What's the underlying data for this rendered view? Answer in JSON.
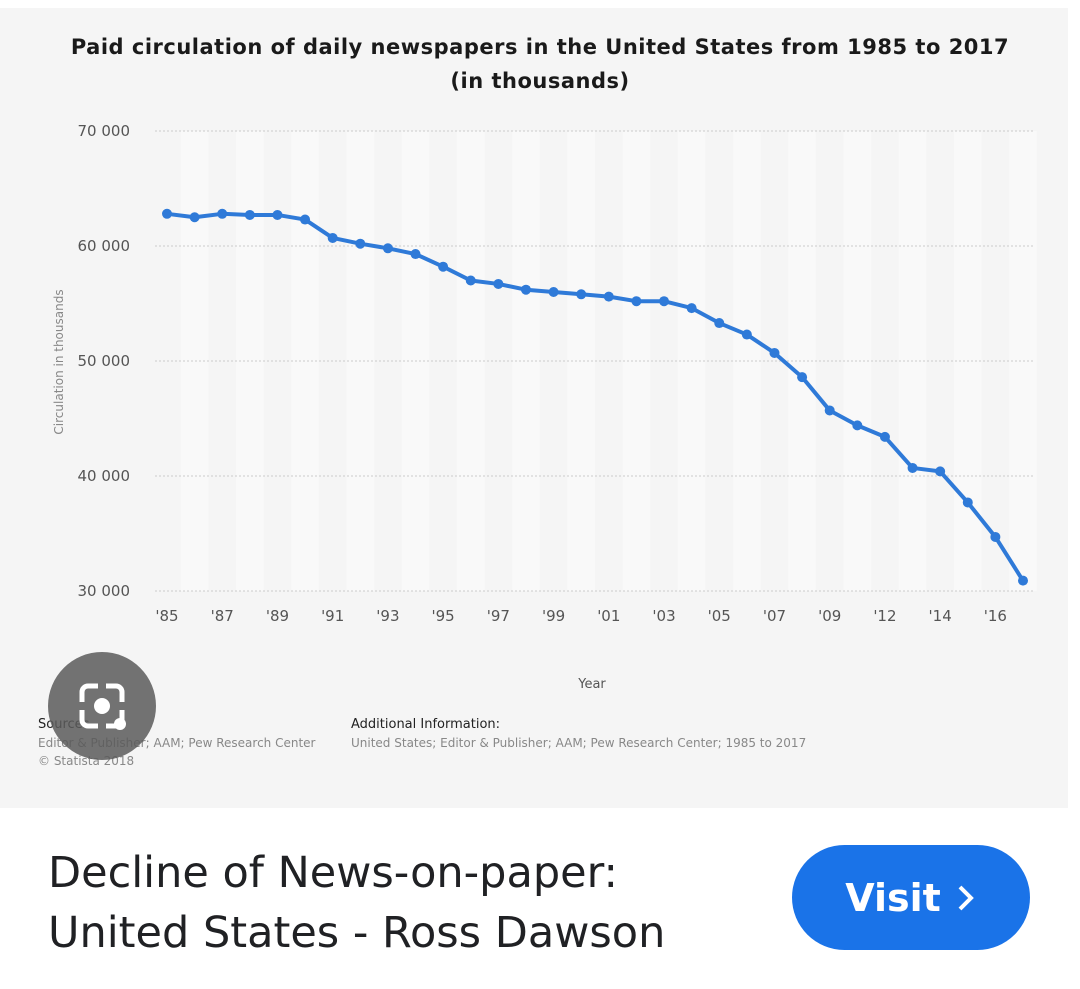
{
  "chart_data": {
    "type": "line",
    "title": "Paid circulation of daily newspapers in the United States from 1985 to 2017 (in thousands)",
    "x_label": "Year",
    "y_label": "Circulation in thousands",
    "categories": [
      "'85",
      null,
      "'87",
      null,
      "'89",
      null,
      "'91",
      null,
      "'93",
      null,
      "'95",
      null,
      "'97",
      null,
      "'99",
      null,
      "'01",
      null,
      "'03",
      null,
      "'05",
      null,
      "'07",
      null,
      "'09",
      null,
      "'12",
      null,
      "'14",
      null,
      "'16",
      null
    ],
    "series": [
      {
        "name": "Circulation",
        "color": "#2f7ad8",
        "values": [
          62800,
          62500,
          62800,
          62700,
          62700,
          62300,
          60700,
          60200,
          59800,
          59300,
          58200,
          57000,
          56700,
          56200,
          56000,
          55800,
          55600,
          55200,
          55200,
          54600,
          53300,
          52300,
          50700,
          48600,
          45700,
          44400,
          43400,
          40700,
          40400,
          37700,
          34700,
          30900
        ]
      }
    ],
    "ylim": [
      30000,
      70000
    ],
    "yticks": [
      {
        "value": 30000,
        "label": "30 000"
      },
      {
        "value": 40000,
        "label": "40 000"
      },
      {
        "value": 50000,
        "label": "50 000"
      },
      {
        "value": 60000,
        "label": "60 000"
      },
      {
        "value": 70000,
        "label": "70 000"
      }
    ],
    "grid": true
  },
  "source": {
    "heading": "Sources",
    "text": "Editor & Publisher; AAM; Pew Research Center",
    "copyright": "© Statista 2018"
  },
  "additional_info": {
    "heading": "Additional Information:",
    "text": "United States; Editor & Publisher; AAM; Pew Research Center; 1985 to 2017"
  },
  "result": {
    "title": "Decline of News-on-paper: United States - Ross Dawson",
    "button": "Visit"
  }
}
